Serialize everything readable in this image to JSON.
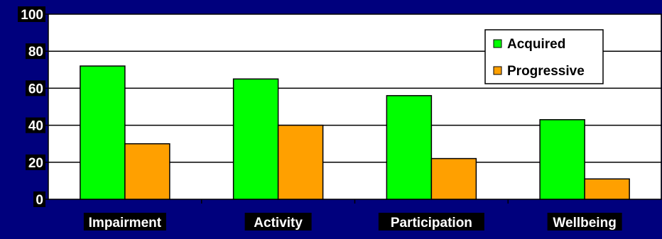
{
  "chart_data": {
    "type": "bar",
    "categories": [
      "Impairment",
      "Activity",
      "Participation",
      "Wellbeing"
    ],
    "series": [
      {
        "name": "Acquired",
        "values": [
          72,
          65,
          56,
          43
        ],
        "color": "#00ff00"
      },
      {
        "name": "Progressive",
        "values": [
          30,
          40,
          22,
          11
        ],
        "color": "#ffa000"
      }
    ],
    "title": "",
    "xlabel": "",
    "ylabel": "",
    "ylim": [
      0,
      100
    ],
    "yticks": [
      0,
      20,
      40,
      60,
      80,
      100
    ],
    "grid": true,
    "legend_position": "top-right",
    "colors": {
      "background": "#00007d",
      "plot_area": "#ffffff",
      "grid": "#000000",
      "label_bg": "#000000",
      "label_text": "#ffffff"
    }
  }
}
